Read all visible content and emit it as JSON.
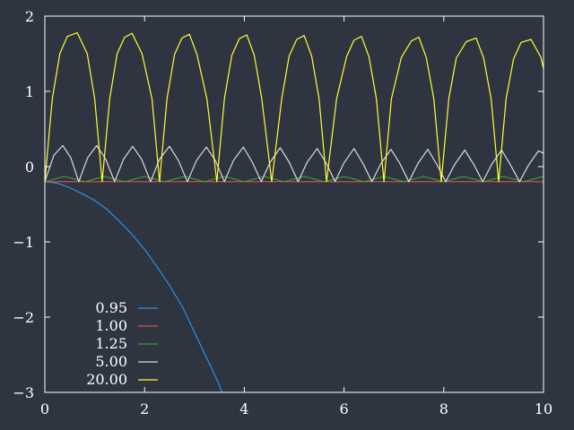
{
  "chart_data": {
    "type": "line",
    "title": "",
    "xlabel": "",
    "ylabel": "",
    "xlim": [
      0,
      10
    ],
    "ylim": [
      -3,
      2
    ],
    "x_ticks": [
      0,
      2,
      4,
      6,
      8,
      10
    ],
    "y_ticks": [
      -3,
      -2,
      -1,
      0,
      1,
      2
    ],
    "x_tick_labels": [
      "0",
      "2",
      "4",
      "6",
      "8",
      "10"
    ],
    "y_tick_labels": [
      "−3",
      "−2",
      "−1",
      "0",
      "1",
      "2"
    ],
    "grid": false,
    "legend_position": "bottom-left",
    "background": "#2e3440",
    "axis_color": "#ffffff",
    "series": [
      {
        "name": "0.95",
        "color": "#2f8fe0",
        "x": [
          0,
          0.25,
          0.5,
          0.75,
          1.0,
          1.25,
          1.5,
          1.75,
          2.0,
          2.25,
          2.5,
          2.75,
          3.0,
          3.25,
          3.5,
          3.55
        ],
        "y": [
          -0.2,
          -0.22,
          -0.28,
          -0.36,
          -0.45,
          -0.57,
          -0.73,
          -0.9,
          -1.1,
          -1.33,
          -1.58,
          -1.85,
          -2.2,
          -2.55,
          -2.9,
          -3.0
        ]
      },
      {
        "name": "1.00",
        "color": "#e05050",
        "x": [
          0,
          10
        ],
        "y": [
          -0.2,
          -0.2
        ]
      },
      {
        "name": "1.25",
        "color": "#3aa03a",
        "x": [
          0,
          0.4,
          0.8,
          1.2,
          1.6,
          2.0,
          2.4,
          2.8,
          3.2,
          3.6,
          4.0,
          4.4,
          4.8,
          5.2,
          5.6,
          6.0,
          6.4,
          6.8,
          7.2,
          7.6,
          8.0,
          8.4,
          8.8,
          9.2,
          9.6,
          10.0
        ],
        "y": [
          -0.2,
          -0.13,
          -0.2,
          -0.13,
          -0.2,
          -0.13,
          -0.2,
          -0.13,
          -0.2,
          -0.13,
          -0.2,
          -0.13,
          -0.2,
          -0.13,
          -0.2,
          -0.13,
          -0.2,
          -0.13,
          -0.2,
          -0.13,
          -0.2,
          -0.13,
          -0.2,
          -0.13,
          -0.2,
          -0.13
        ]
      },
      {
        "name": "5.00",
        "color": "#dcdcdc",
        "x": [
          0,
          0.18,
          0.36,
          0.52,
          0.68,
          0.86,
          1.04,
          1.22,
          1.4,
          1.58,
          1.76,
          1.94,
          2.12,
          2.3,
          2.5,
          2.68,
          2.86,
          3.04,
          3.24,
          3.42,
          3.6,
          3.78,
          3.98,
          4.16,
          4.34,
          4.52,
          4.72,
          4.9,
          5.08,
          5.26,
          5.46,
          5.64,
          5.82,
          6.0,
          6.2,
          6.38,
          6.56,
          6.74,
          6.94,
          7.12,
          7.3,
          7.48,
          7.68,
          7.86,
          8.04,
          8.22,
          8.42,
          8.6,
          8.78,
          8.96,
          9.16,
          9.34,
          9.52,
          9.7,
          9.9,
          10.0
        ],
        "y": [
          -0.2,
          0.15,
          0.28,
          0.12,
          -0.2,
          0.12,
          0.28,
          0.1,
          -0.2,
          0.1,
          0.27,
          0.1,
          -0.2,
          0.1,
          0.27,
          0.08,
          -0.2,
          0.08,
          0.26,
          0.08,
          -0.2,
          0.08,
          0.26,
          0.06,
          -0.2,
          0.06,
          0.25,
          0.06,
          -0.2,
          0.06,
          0.24,
          0.05,
          -0.2,
          0.05,
          0.24,
          0.04,
          -0.2,
          0.04,
          0.23,
          0.04,
          -0.2,
          0.04,
          0.23,
          0.03,
          -0.2,
          0.03,
          0.22,
          0.03,
          -0.2,
          0.03,
          0.22,
          0.02,
          -0.2,
          0.02,
          0.21,
          0.18
        ]
      },
      {
        "name": "20.00",
        "color": "#ffff33",
        "x": [
          0,
          0.15,
          0.3,
          0.45,
          0.65,
          0.85,
          1.0,
          1.15,
          1.3,
          1.45,
          1.6,
          1.75,
          1.95,
          2.15,
          2.3,
          2.45,
          2.6,
          2.75,
          2.9,
          3.05,
          3.25,
          3.45,
          3.6,
          3.75,
          3.9,
          4.05,
          4.2,
          4.35,
          4.55,
          4.75,
          4.9,
          5.05,
          5.2,
          5.35,
          5.5,
          5.65,
          5.85,
          6.05,
          6.2,
          6.35,
          6.5,
          6.65,
          6.8,
          6.95,
          7.15,
          7.35,
          7.5,
          7.65,
          7.8,
          7.95,
          8.1,
          8.25,
          8.45,
          8.65,
          8.8,
          8.95,
          9.1,
          9.25,
          9.4,
          9.55,
          9.75,
          9.95,
          10.0
        ],
        "y": [
          -0.2,
          0.9,
          1.5,
          1.73,
          1.78,
          1.5,
          0.9,
          -0.2,
          0.9,
          1.5,
          1.72,
          1.77,
          1.5,
          0.9,
          -0.2,
          0.9,
          1.49,
          1.71,
          1.76,
          1.49,
          0.9,
          -0.2,
          0.9,
          1.48,
          1.7,
          1.75,
          1.48,
          0.9,
          -0.2,
          0.9,
          1.47,
          1.69,
          1.74,
          1.47,
          0.9,
          -0.2,
          0.9,
          1.46,
          1.68,
          1.73,
          1.46,
          0.9,
          -0.2,
          0.9,
          1.45,
          1.67,
          1.72,
          1.45,
          0.9,
          -0.2,
          0.9,
          1.44,
          1.66,
          1.71,
          1.44,
          0.9,
          -0.2,
          0.9,
          1.43,
          1.65,
          1.69,
          1.45,
          1.3
        ]
      }
    ]
  }
}
